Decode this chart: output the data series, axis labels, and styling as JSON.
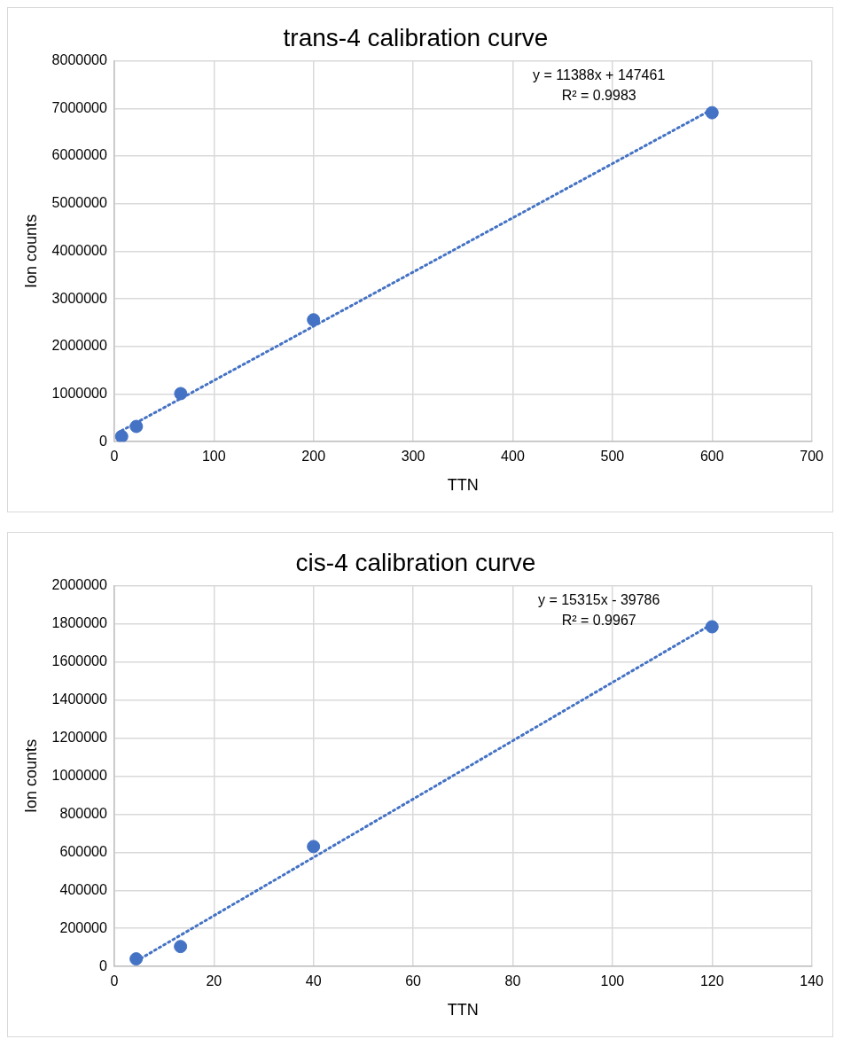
{
  "chart_data": [
    {
      "type": "scatter",
      "title": "trans-4 calibration curve",
      "xlabel": "TTN",
      "ylabel": "Ion counts",
      "xlim": [
        0,
        700
      ],
      "xticks": [
        0,
        100,
        200,
        300,
        400,
        500,
        600,
        700
      ],
      "ylim": [
        0,
        8000000
      ],
      "yticks": [
        0,
        1000000,
        2000000,
        3000000,
        4000000,
        5000000,
        6000000,
        7000000,
        8000000
      ],
      "grid": true,
      "legend": false,
      "series": [
        {
          "color": "#4472c4",
          "marker": "circle",
          "x": [
            7.4,
            22.2,
            66.7,
            200,
            600
          ],
          "values": [
            110000,
            320000,
            1010000,
            2560000,
            6910000
          ]
        },
        {
          "type": "line",
          "marker": "none",
          "color": "#4472c4",
          "line_style": "dotted",
          "x": [
            7.4,
            600
          ],
          "values": [
            230000,
            6980000
          ]
        }
      ],
      "annotations": [
        "y = 11388x + 147461",
        "R² = 0.9983"
      ]
    },
    {
      "type": "scatter",
      "title": "cis-4 calibration curve",
      "xlabel": "TTN",
      "ylabel": "Ion counts",
      "xlim": [
        0,
        140
      ],
      "xticks": [
        0,
        20,
        40,
        60,
        80,
        100,
        120,
        140
      ],
      "ylim": [
        0,
        2000000
      ],
      "yticks": [
        0,
        200000,
        400000,
        600000,
        800000,
        1000000,
        1200000,
        1400000,
        1600000,
        1800000,
        2000000
      ],
      "grid": true,
      "legend": false,
      "series": [
        {
          "color": "#4472c4",
          "marker": "circle",
          "x": [
            4.4,
            13.3,
            40,
            120
          ],
          "values": [
            40000,
            105000,
            630000,
            1784000
          ]
        },
        {
          "type": "line",
          "marker": "none",
          "color": "#4472c4",
          "line_style": "dotted",
          "x": [
            4.4,
            120
          ],
          "values": [
            28000,
            1798000
          ]
        }
      ],
      "annotations": [
        "y = 15315x - 39786",
        "R² = 0.9967"
      ]
    }
  ]
}
